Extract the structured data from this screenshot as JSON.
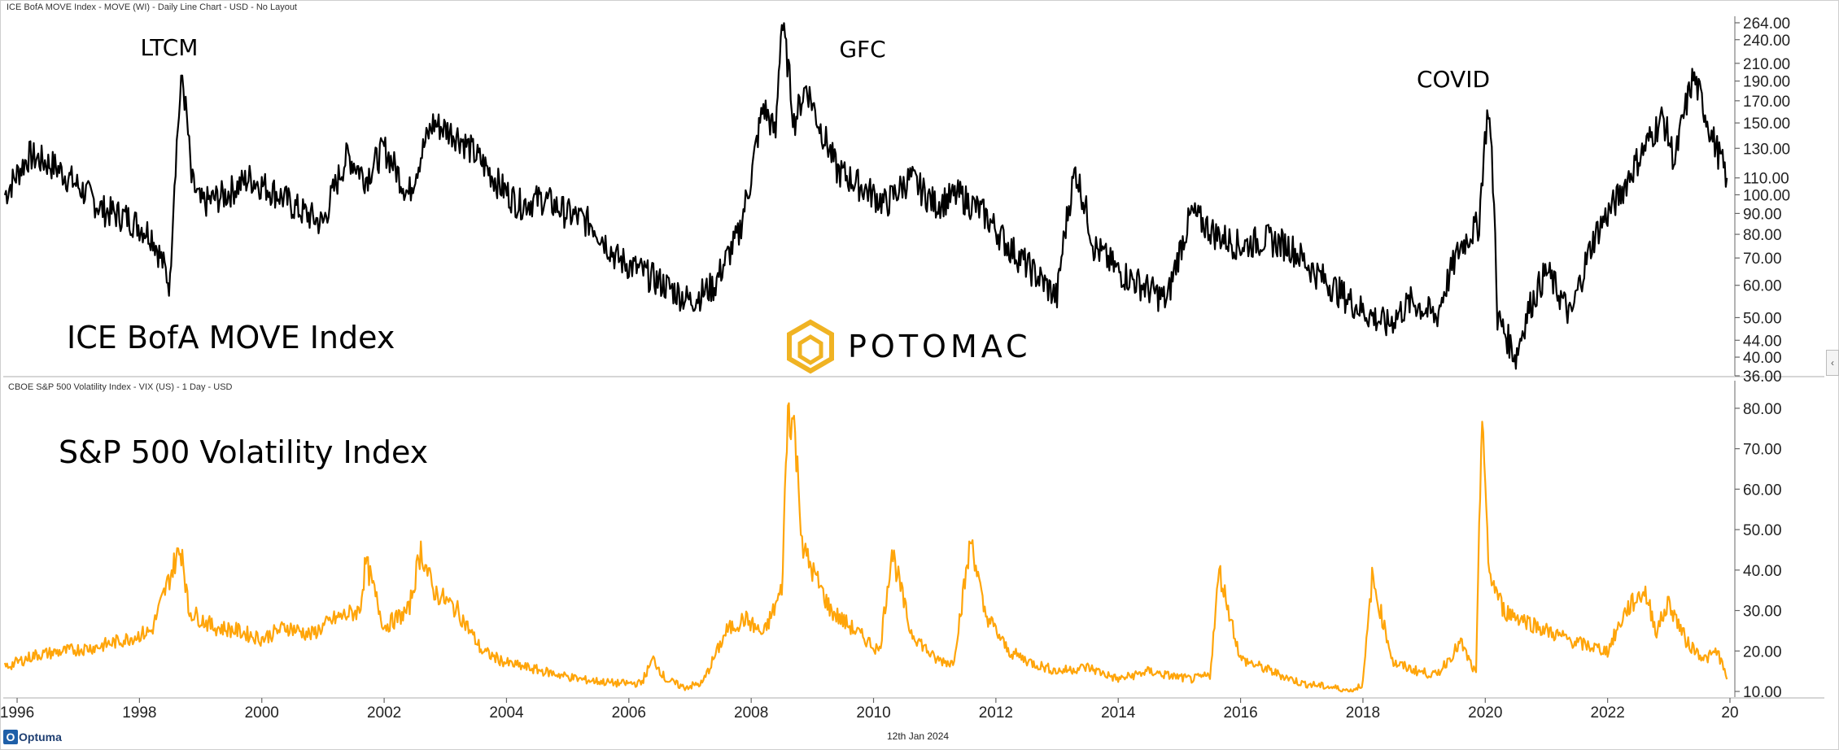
{
  "top_panel_title": "ICE BofA MOVE Index - MOVE (WI) - Daily Line Chart - USD - No Layout",
  "bottom_panel_title": "CBOE S&P 500 Volatility Index - VIX (US) - 1 Day - USD",
  "date_label": "12th Jan 2024",
  "brand": {
    "name": "POTOMAC",
    "accent": "#f0b323"
  },
  "footer": {
    "logo_mark": "O",
    "logo_word": "Optuma"
  },
  "collapse_glyph": "‹",
  "chart_data": [
    {
      "type": "line",
      "title": "ICE BofA MOVE Index",
      "color": "#000000",
      "y_scale": "log",
      "ylim": [
        36,
        264
      ],
      "y_ticks": [
        "264.00",
        "240.00",
        "210.00",
        "190.00",
        "170.00",
        "150.00",
        "130.00",
        "110.00",
        "100.00",
        "90.00",
        "80.00",
        "70.00",
        "60.00",
        "50.00",
        "44.00",
        "40.00",
        "36.00"
      ],
      "annotations": [
        {
          "text": "LTCM",
          "x": 1998.75
        },
        {
          "text": "GFC",
          "x": 2009.5
        },
        {
          "text": "COVID",
          "x": 2020.0
        }
      ],
      "x": [
        1995.8,
        1996.2,
        1996.6,
        1997.0,
        1997.4,
        1997.8,
        1998.2,
        1998.5,
        1998.7,
        1998.85,
        1999.0,
        1999.4,
        1999.8,
        2000.2,
        2000.6,
        2001.0,
        2001.4,
        2001.7,
        2002.0,
        2002.4,
        2002.8,
        2003.2,
        2003.6,
        2003.9,
        2004.2,
        2004.6,
        2005.0,
        2005.4,
        2005.8,
        2006.2,
        2006.6,
        2007.0,
        2007.4,
        2007.8,
        2008.0,
        2008.2,
        2008.4,
        2008.5,
        2008.7,
        2008.9,
        2009.1,
        2009.4,
        2009.8,
        2010.2,
        2010.6,
        2011.0,
        2011.4,
        2011.8,
        2012.2,
        2012.6,
        2013.0,
        2013.3,
        2013.6,
        2014.0,
        2014.4,
        2014.8,
        2015.2,
        2015.6,
        2016.0,
        2016.4,
        2016.8,
        2017.2,
        2017.6,
        2018.0,
        2018.4,
        2018.8,
        2019.2,
        2019.6,
        2019.9,
        2020.05,
        2020.2,
        2020.5,
        2020.7,
        2021.0,
        2021.4,
        2021.8,
        2022.2,
        2022.6,
        2022.9,
        2023.1,
        2023.4,
        2023.7,
        2023.95
      ],
      "values": [
        100,
        125,
        118,
        105,
        92,
        88,
        80,
        60,
        195,
        108,
        95,
        100,
        110,
        102,
        92,
        85,
        125,
        110,
        130,
        100,
        150,
        140,
        120,
        105,
        95,
        98,
        90,
        85,
        70,
        65,
        60,
        55,
        60,
        80,
        110,
        165,
        140,
        265,
        150,
        185,
        150,
        115,
        105,
        95,
        110,
        95,
        100,
        90,
        75,
        65,
        56,
        115,
        75,
        65,
        60,
        55,
        90,
        80,
        75,
        78,
        75,
        65,
        58,
        52,
        48,
        55,
        50,
        75,
        85,
        165,
        50,
        40,
        52,
        65,
        50,
        80,
        100,
        130,
        155,
        120,
        195,
        140,
        110
      ]
    },
    {
      "type": "line",
      "title": "S&P 500 Volatility Index",
      "color": "#ffa50a",
      "ylim": [
        10,
        84
      ],
      "y_ticks": [
        "80.00",
        "70.00",
        "60.00",
        "50.00",
        "40.00",
        "30.00",
        "20.00",
        "10.00"
      ],
      "x": [
        1995.8,
        1996.3,
        1996.8,
        1997.3,
        1997.8,
        1998.2,
        1998.6,
        1998.7,
        1998.8,
        1999.2,
        1999.6,
        2000.0,
        2000.4,
        2000.8,
        2001.2,
        2001.6,
        2001.7,
        2002.0,
        2002.4,
        2002.6,
        2002.8,
        2003.2,
        2003.6,
        2004.0,
        2004.6,
        2005.2,
        2005.8,
        2006.2,
        2006.4,
        2006.6,
        2006.9,
        2007.2,
        2007.6,
        2007.9,
        2008.2,
        2008.5,
        2008.6,
        2008.7,
        2008.85,
        2009.0,
        2009.3,
        2009.7,
        2010.1,
        2010.3,
        2010.6,
        2011.0,
        2011.3,
        2011.6,
        2011.8,
        2012.2,
        2012.6,
        2013.0,
        2013.5,
        2014.0,
        2014.5,
        2014.8,
        2015.2,
        2015.5,
        2015.65,
        2016.0,
        2016.5,
        2017.0,
        2017.5,
        2017.8,
        2018.0,
        2018.15,
        2018.5,
        2018.9,
        2019.2,
        2019.6,
        2019.85,
        2019.95,
        2020.05,
        2020.3,
        2020.6,
        2021.0,
        2021.5,
        2022.0,
        2022.3,
        2022.6,
        2022.8,
        2023.0,
        2023.3,
        2023.6,
        2023.8,
        2023.95
      ],
      "values": [
        16,
        19,
        20,
        21,
        23,
        25,
        43,
        45,
        30,
        26,
        25,
        23,
        26,
        24,
        28,
        30,
        42,
        26,
        30,
        45,
        35,
        30,
        20,
        17,
        15,
        13,
        12,
        12,
        18,
        13,
        11,
        12,
        25,
        28,
        24,
        35,
        80,
        76,
        45,
        40,
        30,
        25,
        20,
        45,
        25,
        18,
        17,
        48,
        30,
        20,
        17,
        15,
        16,
        13,
        15,
        14,
        13,
        14,
        40,
        18,
        15,
        12,
        11,
        10,
        12,
        38,
        17,
        15,
        14,
        22,
        14,
        82,
        40,
        30,
        28,
        25,
        22,
        20,
        30,
        35,
        25,
        32,
        22,
        18,
        20,
        13
      ]
    }
  ],
  "x_axis": {
    "ticks": [
      "1996",
      "1998",
      "2000",
      "2002",
      "2004",
      "2006",
      "2008",
      "2010",
      "2012",
      "2014",
      "2016",
      "2018",
      "2020",
      "2022",
      "20"
    ]
  }
}
